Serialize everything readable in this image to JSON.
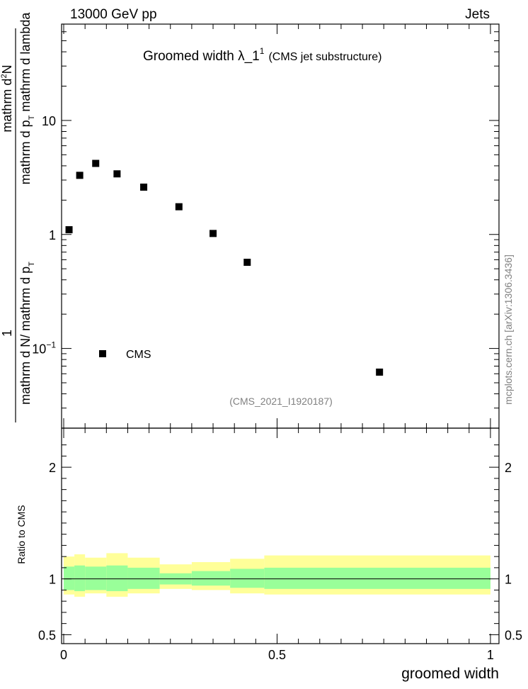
{
  "header": {
    "energy_label": "13000 GeV pp",
    "process_label": "Jets",
    "plot_title": "Groomed width  λ_1",
    "plot_title_sup": "1",
    "plot_subtitle": "(CMS jet substructure)",
    "analysis_id": "(CMS_2021_I1920187)",
    "side_credit": "mcplots.cern.ch [arXiv:1306.3436]"
  },
  "main_ylabel": {
    "numerator": "1",
    "denominator_line1": "mathrm d N",
    "denominator_slash": "/ mathrm d p",
    "denominator_sub": "T",
    "top_numerator": "mathrm d",
    "top_sup": "2",
    "top_N": "N",
    "top_line2": "mathrm d p",
    "top_line2_sub": "T",
    "top_line2_rest": " mathrm d lambda"
  },
  "ratio_ylabel": "Ratio to CMS",
  "xlabel": "groomed width",
  "legend": {
    "label": "CMS"
  },
  "colors": {
    "marker": "#000000",
    "band_inner": "#99ff99",
    "band_outer": "#ffff99",
    "axis": "#000000"
  },
  "chart_data": [
    {
      "type": "scatter",
      "yscale": "log",
      "xlim": [
        -0.005,
        1.02
      ],
      "ylim": [
        0.02,
        70
      ],
      "y_tick_labels": [
        "10^-1",
        "1",
        "10"
      ],
      "series": [
        {
          "name": "CMS",
          "x": [
            0.0125,
            0.0375,
            0.075,
            0.125,
            0.1875,
            0.27,
            0.35,
            0.43,
            0.74
          ],
          "y": [
            1.1,
            3.3,
            4.2,
            3.4,
            2.6,
            1.75,
            1.02,
            0.57,
            0.062
          ]
        }
      ]
    },
    {
      "type": "area",
      "xlim": [
        -0.005,
        1.02
      ],
      "ylim": [
        0.42,
        2.35
      ],
      "y_tick_labels": [
        "0.5",
        "1",
        "2"
      ],
      "x_tick_labels": [
        "0",
        "0.5",
        "1"
      ],
      "bins": [
        0.0,
        0.025,
        0.05,
        0.1,
        0.15,
        0.225,
        0.3,
        0.39,
        0.47,
        1.0
      ],
      "ratio": [
        1.0,
        1.0,
        1.0,
        1.0,
        1.0,
        1.0,
        1.0,
        1.0,
        1.0
      ],
      "inner_lo": [
        0.9,
        0.89,
        0.9,
        0.89,
        0.91,
        0.95,
        0.94,
        0.92,
        0.91
      ],
      "inner_hi": [
        1.11,
        1.12,
        1.11,
        1.12,
        1.1,
        1.05,
        1.07,
        1.09,
        1.1
      ],
      "outer_lo": [
        0.86,
        0.84,
        0.87,
        0.84,
        0.87,
        0.91,
        0.9,
        0.87,
        0.86
      ],
      "outer_hi": [
        1.2,
        1.22,
        1.19,
        1.23,
        1.19,
        1.13,
        1.15,
        1.18,
        1.21
      ]
    }
  ]
}
